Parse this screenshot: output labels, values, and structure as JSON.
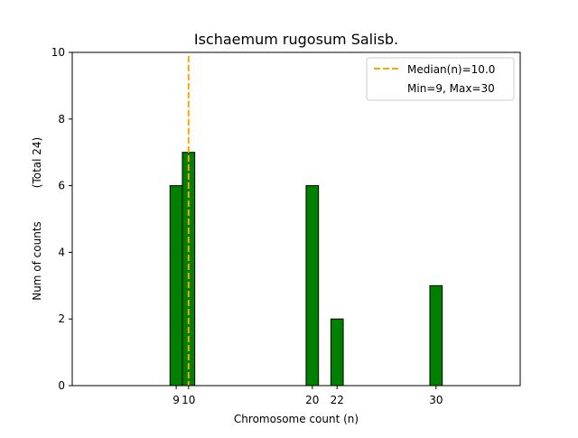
{
  "chart_data": {
    "type": "bar",
    "title": "Ischaemum rugosum Salisb.",
    "xlabel": "Chromosome count (n)",
    "ylabel": "Num of counts",
    "ylabel_note": "(Total 24)",
    "xlim": [
      0.6,
      36.8
    ],
    "ylim": [
      0,
      10
    ],
    "yticks": [
      0,
      2,
      4,
      6,
      8,
      10
    ],
    "xticks": [
      9,
      10,
      20,
      22,
      30
    ],
    "bar_width": 1,
    "bar_color": "#008000",
    "bar_edge_color": "#000000",
    "bars": [
      {
        "x": 9,
        "value": 6
      },
      {
        "x": 10,
        "value": 7
      },
      {
        "x": 20,
        "value": 6
      },
      {
        "x": 22,
        "value": 2
      },
      {
        "x": 30,
        "value": 3
      }
    ],
    "baseline_extent": [
      9,
      33.5
    ],
    "median_line": {
      "x": 10,
      "color": "#FFA500",
      "style": "dashed"
    },
    "legend": {
      "placement": "top-right",
      "entries": [
        "Median(n)=10.0",
        "Min=9, Max=30"
      ]
    }
  }
}
